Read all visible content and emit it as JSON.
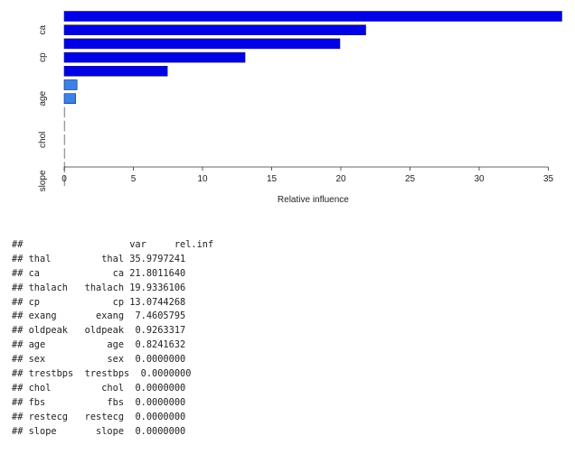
{
  "chart_data": {
    "type": "bar",
    "orientation": "horizontal",
    "categories": [
      "thal",
      "ca",
      "thalach",
      "cp",
      "exang",
      "oldpeak",
      "age",
      "sex",
      "trestbps",
      "chol",
      "fbs",
      "restecg",
      "slope"
    ],
    "values": [
      35.9797241,
      21.801164,
      19.9336106,
      13.0744268,
      7.4605795,
      0.9263317,
      0.8241632,
      0,
      0,
      0,
      0,
      0,
      0
    ],
    "shown_tick_labels": [
      "ca",
      "cp",
      "age",
      "chol",
      "slope"
    ],
    "xlabel": "Relative influence",
    "xlim": [
      0,
      36
    ],
    "xticks": [
      0,
      5,
      10,
      15,
      20,
      25,
      30,
      35
    ],
    "grid": false,
    "colors": {
      "bar_dark": "#0000e6",
      "bar_light": "#3b82e6",
      "bar_border": "#1a1a66"
    }
  },
  "console": {
    "prompt": "##",
    "header": [
      "var",
      "rel.inf"
    ],
    "rows": [
      [
        "thal",
        "thal",
        "35.9797241"
      ],
      [
        "ca",
        "ca",
        "21.8011640"
      ],
      [
        "thalach",
        "thalach",
        "19.9336106"
      ],
      [
        "cp",
        "cp",
        "13.0744268"
      ],
      [
        "exang",
        "exang",
        "7.4605795"
      ],
      [
        "oldpeak",
        "oldpeak",
        "0.9263317"
      ],
      [
        "age",
        "age",
        "0.8241632"
      ],
      [
        "sex",
        "sex",
        "0.0000000"
      ],
      [
        "trestbps",
        "trestbps",
        "0.0000000"
      ],
      [
        "chol",
        "chol",
        "0.0000000"
      ],
      [
        "fbs",
        "fbs",
        "0.0000000"
      ],
      [
        "restecg",
        "restecg",
        "0.0000000"
      ],
      [
        "slope",
        "slope",
        "0.0000000"
      ]
    ]
  }
}
